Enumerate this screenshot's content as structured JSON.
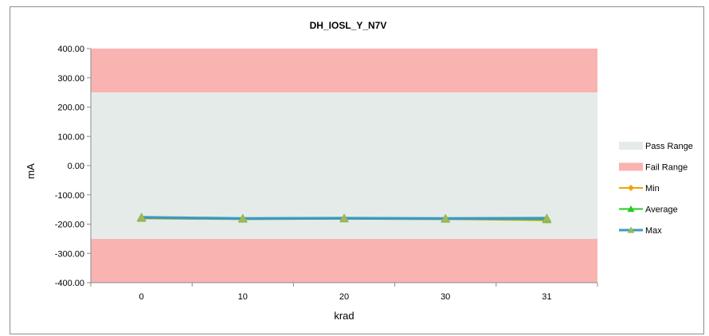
{
  "chart_data": {
    "type": "line",
    "title": "DH_IOSL_Y_N7V",
    "xlabel": "krad",
    "ylabel": "mA",
    "categories": [
      "0",
      "10",
      "20",
      "30",
      "31"
    ],
    "ylim": [
      -400,
      400
    ],
    "yticks": [
      400,
      300,
      200,
      100,
      0,
      -100,
      -200,
      -300,
      -400
    ],
    "ytick_labels": [
      "400.00",
      "300.00",
      "200.00",
      "100.00",
      "0.00",
      "-100.00",
      "-200.00",
      "-300.00",
      "-400.00"
    ],
    "pass_range": [
      -250,
      250
    ],
    "fail_ranges": [
      [
        250,
        400
      ],
      [
        -400,
        -250
      ]
    ],
    "series": [
      {
        "name": "Min",
        "values": [
          -181,
          -183,
          -182,
          -183,
          -187
        ],
        "color": "#f0a30a",
        "marker": "diamond"
      },
      {
        "name": "Average",
        "values": [
          -179,
          -182,
          -181,
          -182,
          -184
        ],
        "color": "#22cc22",
        "marker": "triangle"
      },
      {
        "name": "Max",
        "values": [
          -177,
          -181,
          -180,
          -181,
          -180
        ],
        "color": "#3a9bbf",
        "marker": "triangle"
      }
    ],
    "legend": {
      "position": "right",
      "items": [
        {
          "label": "Pass Range",
          "color": "#e5ebe9",
          "kind": "band"
        },
        {
          "label": "Fail Range",
          "color": "#f9b3b1",
          "kind": "band"
        },
        {
          "label": "Min",
          "color": "#f0a30a",
          "kind": "line-diamond"
        },
        {
          "label": "Average",
          "color": "#22cc22",
          "kind": "line-triangle"
        },
        {
          "label": "Max",
          "color": "#3a9bbf",
          "kind": "line-triangle"
        }
      ]
    },
    "grid": false,
    "colors": {
      "pass": "#e5ebe9",
      "fail": "#f9b3b1",
      "marker_fill": "#9bbb59",
      "axis": "#8c8c8c"
    }
  }
}
